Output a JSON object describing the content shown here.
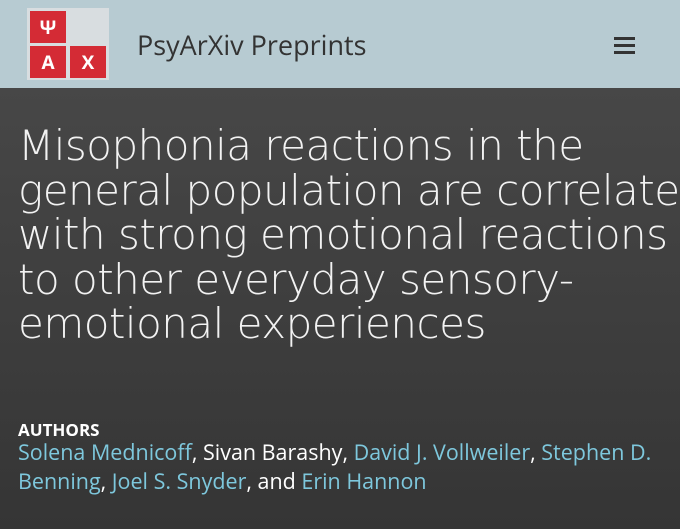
{
  "header": {
    "logo": {
      "top": "Ψ",
      "bottom_left": "A",
      "bottom_right": "X"
    },
    "title": "PsyArXiv Preprints"
  },
  "article": {
    "title_lines": [
      "Misophonia reactions in the",
      "general population are correlated",
      "with strong emotional reactions",
      "to other everyday sensory-",
      "emotional experiences"
    ],
    "authors_heading": "AUTHORS",
    "authors": [
      {
        "name": "Solena Mednicoff",
        "link": true
      },
      {
        "name": "Sivan Barashy",
        "link": false
      },
      {
        "name": "David J. Vollweiler",
        "link": true
      },
      {
        "name": "Stephen D. Benning",
        "link": true
      },
      {
        "name": "Joel S. Snyder",
        "link": true
      },
      {
        "name": "Erin Hannon",
        "link": true
      }
    ],
    "separator": ", ",
    "last_separator": ", and "
  }
}
